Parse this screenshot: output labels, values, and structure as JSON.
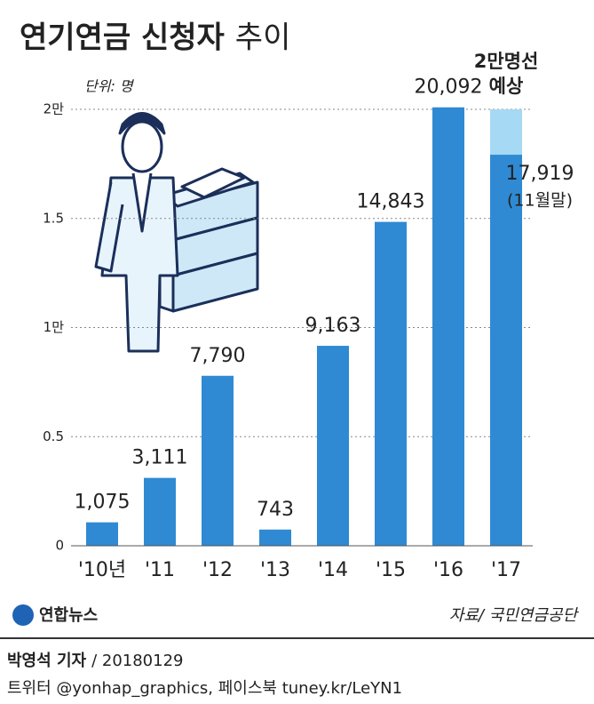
{
  "chart_data": {
    "type": "bar",
    "title": "연기연금 신청자",
    "title_suffix": "추이",
    "unit_label": "단위: 명",
    "categories": [
      "'10년",
      "'11",
      "'12",
      "'13",
      "'14",
      "'15",
      "'16",
      "'17"
    ],
    "values": [
      1075,
      3111,
      7790,
      743,
      9163,
      14843,
      20092,
      17919
    ],
    "value_labels": [
      "1,075",
      "3,111",
      "7,790",
      "743",
      "9,163",
      "14,843",
      "20,092",
      "17,919"
    ],
    "color": "#2f8ad3",
    "projection": {
      "values": [
        null,
        null,
        null,
        null,
        null,
        null,
        null,
        20000
      ],
      "color": "#a6d9f3",
      "label": [
        "2만명선",
        "예상"
      ]
    },
    "last_note": "(11월말)",
    "ylim": [
      0,
      20000
    ],
    "yticks": [
      0,
      {
        "value": 5000,
        "label": "0.5"
      },
      {
        "value": 10000,
        "label": "1만"
      },
      {
        "value": 15000,
        "label": "1.5"
      },
      {
        "value": 20000,
        "label": "2만"
      }
    ],
    "grid": true
  },
  "footer": {
    "logo": "연합뉴스",
    "source": "자료/ 국민연금공단",
    "byline": "박영석 기자",
    "date": "/ 20180129",
    "social": "트위터 @yonhap_graphics, 페이스북 tuney.kr/LeYN1"
  }
}
